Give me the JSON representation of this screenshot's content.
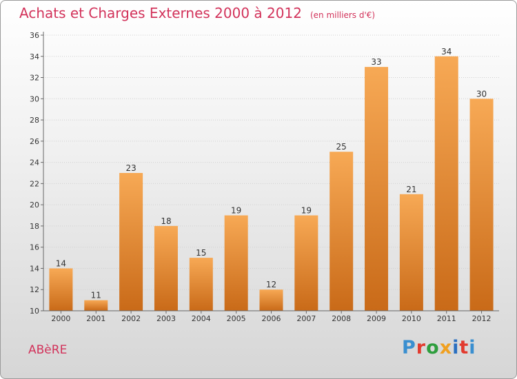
{
  "title": "Achats et Charges Externes 2000 à 2012",
  "subtitle": "(en milliers d'€)",
  "commune": "ABèRE",
  "logo": {
    "text": "Proxiti",
    "letters": [
      "P",
      "r",
      "o",
      "x",
      "i",
      "t",
      "i"
    ],
    "colors": [
      "#3a8fd0",
      "#e23b2f",
      "#2e9e3e",
      "#f0a020",
      "#2a6fc0",
      "#e23b2f",
      "#3a8fd0"
    ]
  },
  "colors": {
    "bar_light": "#f7a955",
    "bar_dark": "#c96a18",
    "title": "#d2325a"
  },
  "chart_data": {
    "type": "bar",
    "categories": [
      "2000",
      "2001",
      "2002",
      "2003",
      "2004",
      "2005",
      "2006",
      "2007",
      "2008",
      "2009",
      "2010",
      "2011",
      "2012"
    ],
    "values": [
      14,
      11,
      23,
      18,
      15,
      19,
      12,
      19,
      25,
      33,
      21,
      34,
      30
    ],
    "ylim": [
      10,
      36
    ],
    "yticks": [
      10,
      12,
      14,
      16,
      18,
      20,
      22,
      24,
      26,
      28,
      30,
      32,
      34,
      36
    ],
    "grid": true,
    "xlabel": "",
    "ylabel": ""
  }
}
